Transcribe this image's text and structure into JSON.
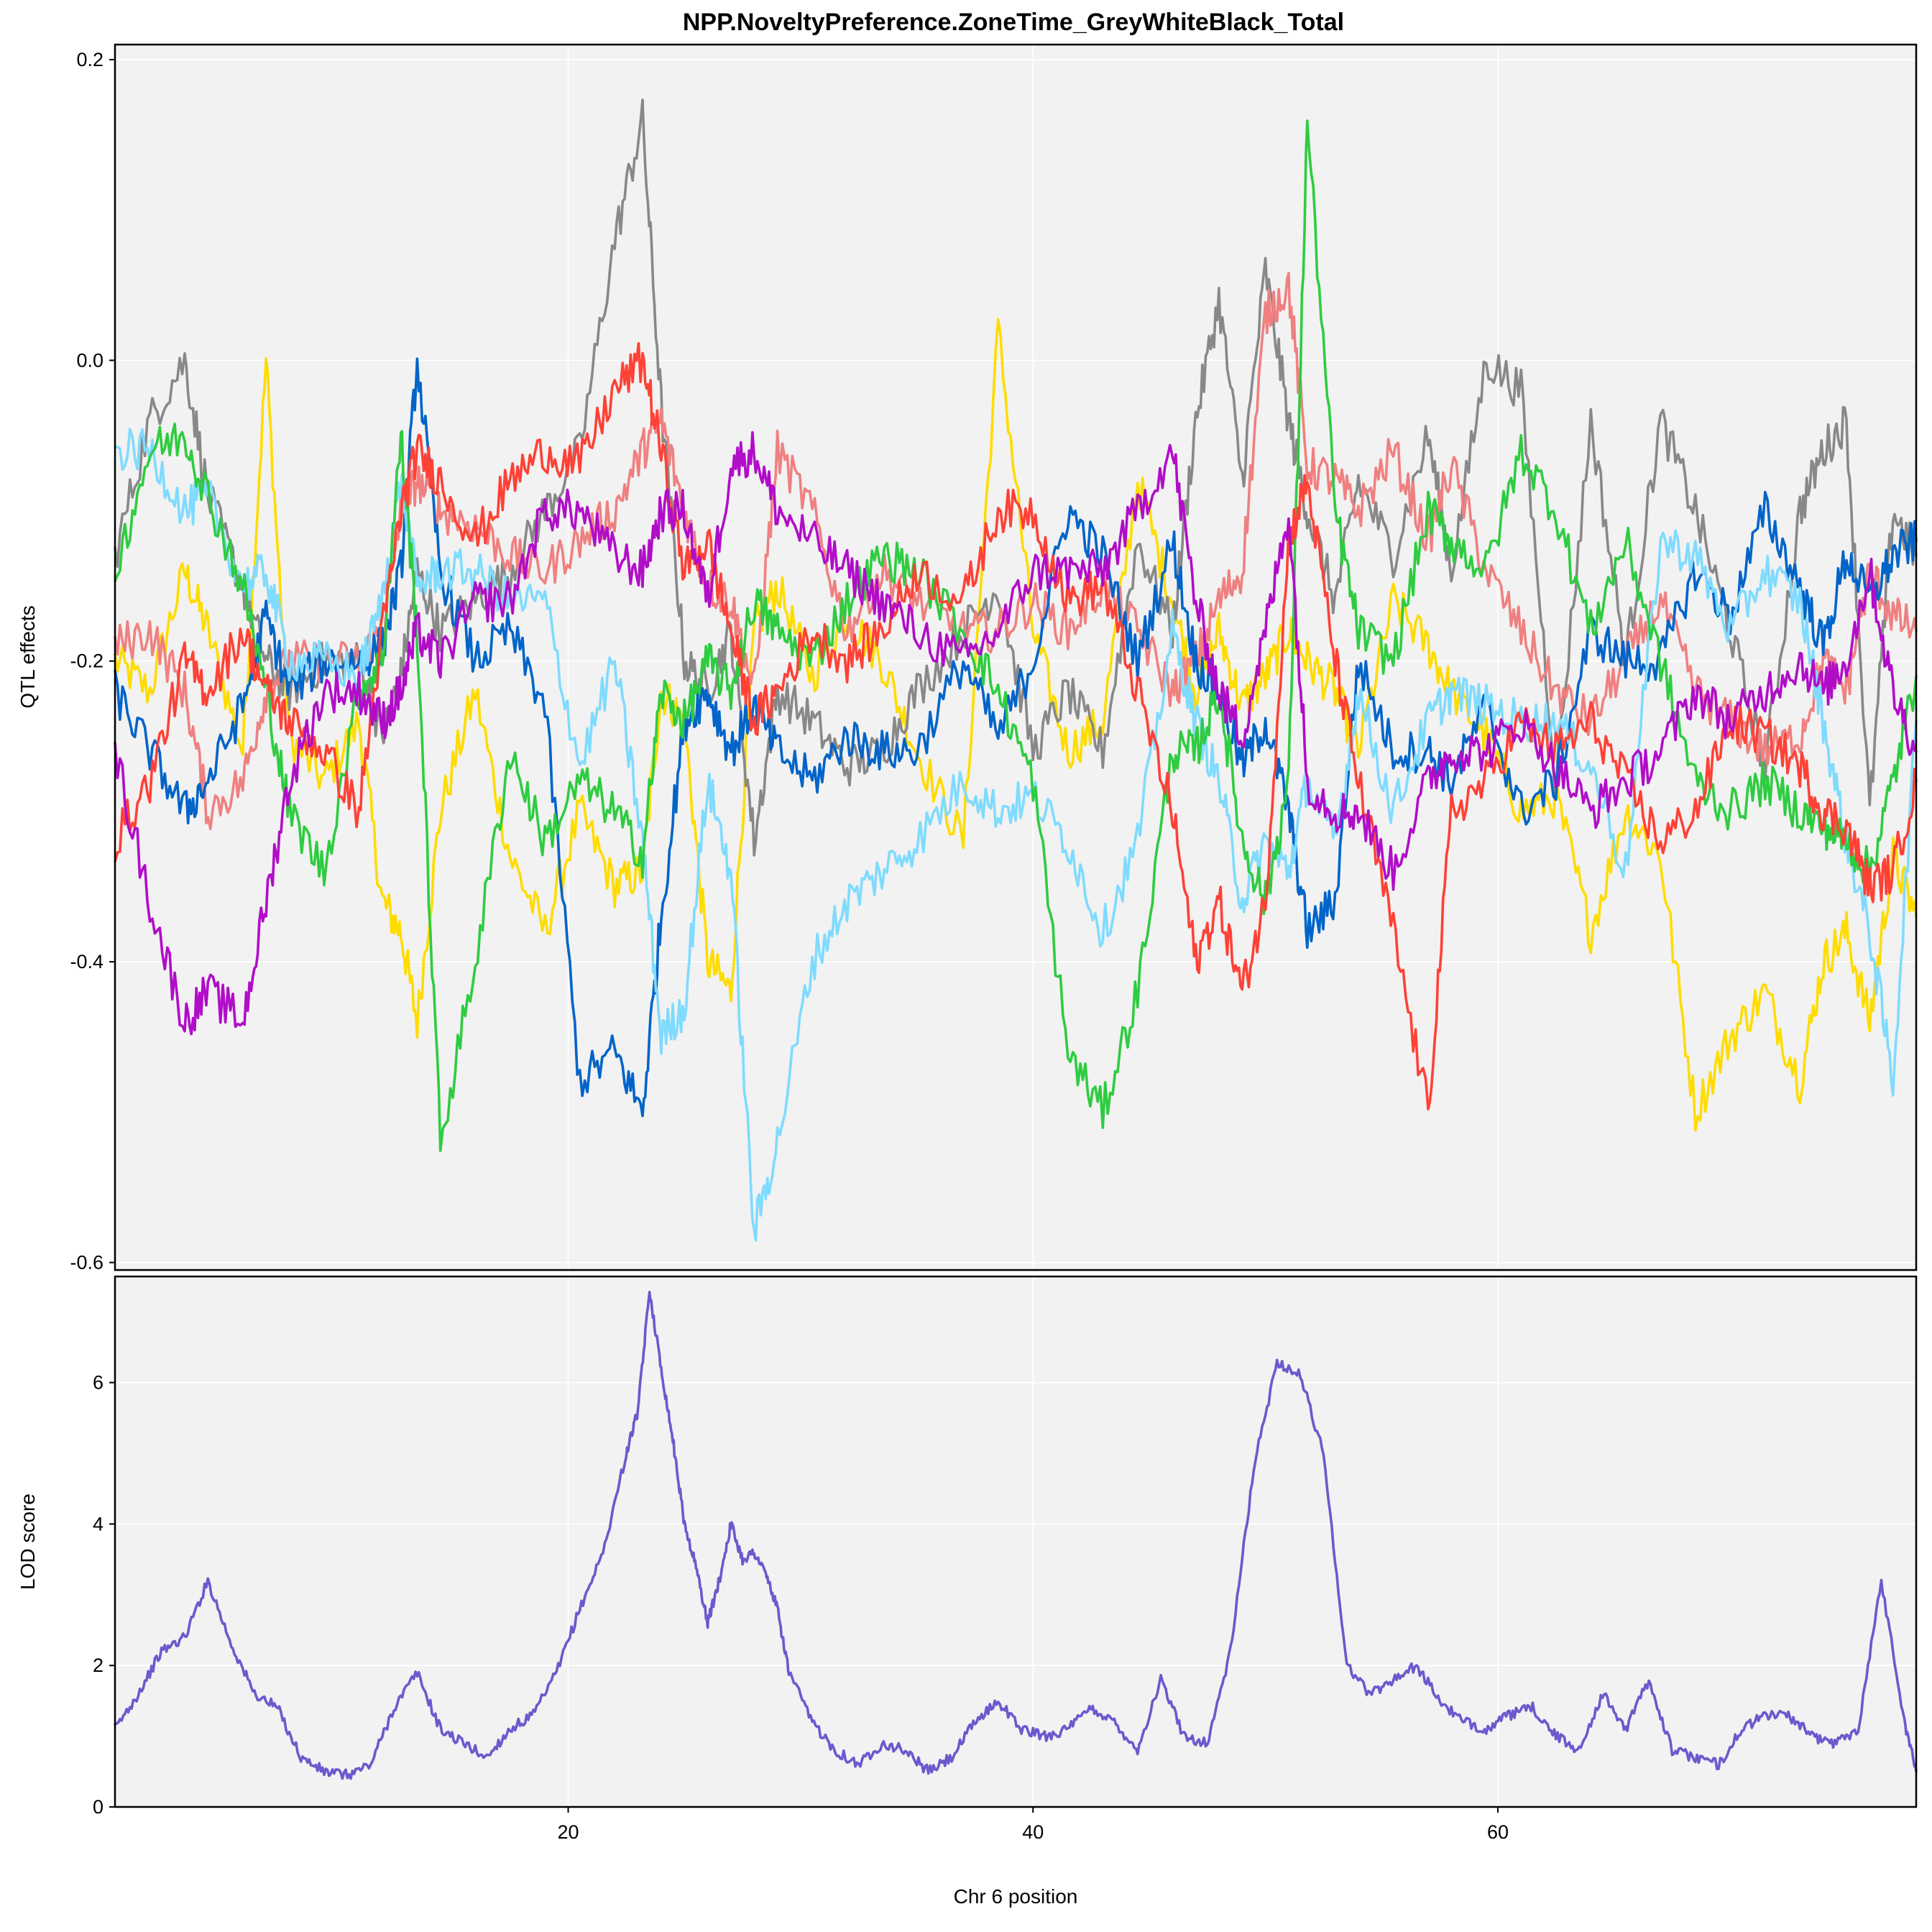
{
  "chart_data": [
    {
      "type": "line",
      "title": "NPP.NoveltyPreference.ZoneTime_GreyWhiteBlack_Total",
      "ylabel": "QTL effects",
      "xlabel": "",
      "xlim": [
        0.5,
        78.0
      ],
      "ylim": [
        -0.605,
        0.21
      ],
      "xticks": [
        20,
        40,
        60
      ],
      "yticks": [
        -0.6,
        -0.4,
        -0.2,
        0.0,
        0.2
      ],
      "ytick_labels": [
        "-0.6",
        "-0.4",
        "-0.2",
        "0.0",
        "0.2"
      ],
      "x": [
        0.5,
        2,
        3.5,
        4.5,
        6,
        7,
        8,
        9.5,
        11,
        12,
        12.8,
        13.5,
        14.5,
        16,
        17.5,
        19,
        20.5,
        22,
        23.2,
        24,
        25,
        26,
        27,
        28,
        29,
        30.5,
        32,
        33.5,
        35,
        37,
        38.5,
        40,
        41.5,
        43,
        44.5,
        46,
        47,
        48,
        49,
        50,
        51,
        51.8,
        53,
        54,
        55.5,
        57,
        58,
        59.5,
        61,
        62.5,
        64,
        65.5,
        67,
        68.5,
        70,
        71.5,
        73,
        74,
        75,
        76,
        77,
        78
      ],
      "series": [
        {
          "color": "#FFDC00",
          "values": [
            -0.2,
            -0.22,
            -0.14,
            -0.18,
            -0.26,
            0.0,
            -0.25,
            -0.28,
            -0.24,
            -0.36,
            -0.38,
            -0.44,
            -0.3,
            -0.22,
            -0.33,
            -0.38,
            -0.3,
            -0.35,
            -0.34,
            -0.22,
            -0.24,
            -0.4,
            -0.42,
            -0.18,
            -0.15,
            -0.21,
            -0.17,
            -0.2,
            -0.26,
            -0.32,
            0.02,
            -0.18,
            -0.26,
            -0.24,
            -0.08,
            -0.16,
            -0.22,
            -0.18,
            -0.23,
            -0.21,
            -0.18,
            -0.2,
            -0.22,
            -0.26,
            -0.16,
            -0.19,
            -0.22,
            -0.25,
            -0.3,
            -0.29,
            -0.38,
            -0.3,
            -0.33,
            -0.5,
            -0.45,
            -0.42,
            -0.48,
            -0.4,
            -0.38,
            -0.44,
            -0.33,
            -0.37
          ]
        },
        {
          "color": "#888888",
          "values": [
            -0.13,
            -0.04,
            0.0,
            -0.09,
            -0.15,
            -0.2,
            -0.22,
            -0.2,
            -0.2,
            -0.25,
            -0.21,
            -0.14,
            -0.18,
            -0.16,
            -0.14,
            -0.1,
            -0.06,
            0.08,
            0.16,
            -0.03,
            -0.2,
            -0.22,
            -0.18,
            -0.32,
            -0.22,
            -0.24,
            -0.27,
            -0.26,
            -0.22,
            -0.18,
            -0.15,
            -0.26,
            -0.22,
            -0.26,
            -0.12,
            -0.18,
            -0.04,
            0.04,
            -0.08,
            0.06,
            -0.04,
            -0.1,
            -0.16,
            -0.08,
            -0.13,
            -0.05,
            -0.14,
            0.0,
            -0.02,
            -0.28,
            -0.04,
            -0.2,
            -0.04,
            -0.1,
            -0.18,
            -0.27,
            -0.1,
            -0.06,
            -0.04,
            -0.3,
            -0.1,
            -0.13
          ]
        },
        {
          "color": "#F08080",
          "values": [
            -0.19,
            -0.18,
            -0.22,
            -0.3,
            -0.28,
            -0.22,
            -0.2,
            -0.2,
            -0.2,
            -0.18,
            -0.1,
            -0.08,
            -0.1,
            -0.11,
            -0.13,
            -0.14,
            -0.12,
            -0.1,
            -0.06,
            -0.04,
            -0.1,
            -0.15,
            -0.16,
            -0.22,
            -0.06,
            -0.1,
            -0.18,
            -0.14,
            -0.16,
            -0.18,
            -0.18,
            -0.16,
            -0.18,
            -0.15,
            -0.18,
            -0.22,
            -0.2,
            -0.16,
            -0.14,
            0.03,
            0.05,
            -0.07,
            -0.08,
            -0.1,
            -0.06,
            -0.12,
            -0.07,
            -0.14,
            -0.18,
            -0.22,
            -0.24,
            -0.2,
            -0.16,
            -0.22,
            -0.24,
            -0.26,
            -0.25,
            -0.2,
            -0.22,
            -0.14,
            -0.17,
            -0.18
          ]
        },
        {
          "color": "#0064C9",
          "values": [
            -0.22,
            -0.26,
            -0.3,
            -0.28,
            -0.23,
            -0.17,
            -0.22,
            -0.2,
            -0.2,
            -0.19,
            -0.14,
            0.0,
            -0.14,
            -0.2,
            -0.18,
            -0.23,
            -0.48,
            -0.46,
            -0.5,
            -0.37,
            -0.24,
            -0.22,
            -0.26,
            -0.23,
            -0.26,
            -0.28,
            -0.25,
            -0.26,
            -0.26,
            -0.2,
            -0.25,
            -0.2,
            -0.1,
            -0.13,
            -0.2,
            -0.12,
            -0.2,
            -0.22,
            -0.27,
            -0.24,
            -0.3,
            -0.38,
            -0.36,
            -0.2,
            -0.26,
            -0.26,
            -0.28,
            -0.23,
            -0.3,
            -0.28,
            -0.18,
            -0.2,
            -0.2,
            -0.14,
            -0.17,
            -0.1,
            -0.15,
            -0.19,
            -0.13,
            -0.16,
            -0.13,
            -0.12
          ]
        },
        {
          "color": "#7FDBFF",
          "values": [
            -0.06,
            -0.06,
            -0.1,
            -0.09,
            -0.15,
            -0.14,
            -0.2,
            -0.2,
            -0.21,
            -0.16,
            -0.08,
            -0.15,
            -0.14,
            -0.14,
            -0.16,
            -0.16,
            -0.27,
            -0.2,
            -0.32,
            -0.45,
            -0.43,
            -0.28,
            -0.34,
            -0.58,
            -0.52,
            -0.4,
            -0.36,
            -0.34,
            -0.32,
            -0.28,
            -0.3,
            -0.29,
            -0.32,
            -0.38,
            -0.32,
            -0.18,
            -0.24,
            -0.28,
            -0.36,
            -0.32,
            -0.34,
            -0.28,
            -0.32,
            -0.22,
            -0.3,
            -0.24,
            -0.22,
            -0.23,
            -0.24,
            -0.24,
            -0.27,
            -0.34,
            -0.12,
            -0.13,
            -0.18,
            -0.14,
            -0.16,
            -0.24,
            -0.32,
            -0.38,
            -0.48,
            -0.24
          ]
        },
        {
          "color": "#2ECC40",
          "values": [
            -0.14,
            -0.06,
            -0.05,
            -0.09,
            -0.15,
            -0.22,
            -0.3,
            -0.34,
            -0.22,
            -0.2,
            -0.05,
            -0.18,
            -0.52,
            -0.4,
            -0.26,
            -0.32,
            -0.28,
            -0.3,
            -0.33,
            -0.22,
            -0.24,
            -0.2,
            -0.22,
            -0.16,
            -0.18,
            -0.2,
            -0.16,
            -0.13,
            -0.14,
            -0.18,
            -0.22,
            -0.28,
            -0.46,
            -0.5,
            -0.42,
            -0.26,
            -0.26,
            -0.22,
            -0.32,
            -0.36,
            -0.28,
            0.16,
            -0.1,
            -0.18,
            -0.2,
            -0.1,
            -0.12,
            -0.14,
            -0.06,
            -0.1,
            -0.18,
            -0.12,
            -0.2,
            -0.28,
            -0.3,
            -0.28,
            -0.3,
            -0.31,
            -0.32,
            -0.34,
            -0.28,
            -0.21
          ]
        },
        {
          "color": "#FF4136",
          "values": [
            -0.32,
            -0.28,
            -0.2,
            -0.22,
            -0.18,
            -0.22,
            -0.24,
            -0.26,
            -0.3,
            -0.18,
            -0.1,
            -0.06,
            -0.08,
            -0.12,
            -0.08,
            -0.06,
            -0.07,
            -0.02,
            0.0,
            -0.06,
            -0.14,
            -0.12,
            -0.18,
            -0.24,
            -0.22,
            -0.18,
            -0.2,
            -0.18,
            -0.14,
            -0.16,
            -0.1,
            -0.1,
            -0.16,
            -0.15,
            -0.22,
            -0.3,
            -0.4,
            -0.36,
            -0.42,
            -0.36,
            -0.12,
            -0.08,
            -0.2,
            -0.28,
            -0.38,
            -0.5,
            -0.3,
            -0.28,
            -0.24,
            -0.26,
            -0.24,
            -0.28,
            -0.32,
            -0.3,
            -0.24,
            -0.25,
            -0.27,
            -0.3,
            -0.31,
            -0.35,
            -0.34,
            -0.28
          ]
        },
        {
          "color": "#B10DC9",
          "values": [
            -0.26,
            -0.36,
            -0.44,
            -0.42,
            -0.44,
            -0.36,
            -0.28,
            -0.22,
            -0.22,
            -0.24,
            -0.22,
            -0.18,
            -0.2,
            -0.16,
            -0.16,
            -0.1,
            -0.1,
            -0.13,
            -0.14,
            -0.1,
            -0.1,
            -0.16,
            -0.07,
            -0.06,
            -0.1,
            -0.12,
            -0.14,
            -0.16,
            -0.18,
            -0.2,
            -0.18,
            -0.14,
            -0.14,
            -0.14,
            -0.1,
            -0.06,
            -0.16,
            -0.22,
            -0.25,
            -0.18,
            -0.1,
            -0.28,
            -0.3,
            -0.3,
            -0.34,
            -0.28,
            -0.26,
            -0.26,
            -0.24,
            -0.27,
            -0.3,
            -0.28,
            -0.26,
            -0.22,
            -0.24,
            -0.22,
            -0.2,
            -0.22,
            -0.2,
            -0.14,
            -0.22,
            -0.26
          ]
        }
      ]
    },
    {
      "type": "line",
      "title": "",
      "ylabel": "LOD score",
      "xlabel": "Chr 6 position",
      "xlim": [
        0.5,
        78.0
      ],
      "ylim": [
        0,
        7.5
      ],
      "xticks": [
        20,
        40,
        60
      ],
      "xtick_labels": [
        "20",
        "40",
        "60"
      ],
      "yticks": [
        0,
        2,
        4,
        6
      ],
      "ytick_labels": [
        "0",
        "2",
        "4",
        "6"
      ],
      "x": [
        0.5,
        1.5,
        2.5,
        3.5,
        4.5,
        5.5,
        6.5,
        7.5,
        8.5,
        9.5,
        10.5,
        11.5,
        12.5,
        13.5,
        14.5,
        15.5,
        16.5,
        17.5,
        18.5,
        19.5,
        20.5,
        21.5,
        22.5,
        23,
        23.5,
        24,
        24.5,
        25,
        25.5,
        26,
        26.5,
        27,
        27.5,
        28,
        28.5,
        29,
        29.5,
        30.5,
        31.5,
        32.5,
        33.5,
        34.5,
        35.5,
        36.5,
        37.5,
        38.5,
        39.5,
        40.5,
        41.5,
        42.5,
        43.5,
        44.5,
        45.5,
        46.5,
        47.5,
        48.5,
        49.5,
        50.5,
        51.5,
        52.5,
        53.5,
        54.5,
        55.5,
        56.5,
        57.5,
        58.5,
        59.5,
        60.5,
        61.5,
        62.5,
        63.5,
        64.5,
        65.5,
        66.5,
        67.5,
        68.5,
        69.5,
        70.5,
        71.5,
        72.5,
        73.5,
        74.5,
        75.5,
        76.5,
        77.5,
        78
      ],
      "series": [
        {
          "color": "#6A5ACD",
          "values": [
            1.1,
            1.6,
            2.2,
            2.4,
            3.2,
            2.3,
            1.6,
            1.4,
            0.7,
            0.5,
            0.45,
            0.6,
            1.4,
            1.9,
            1.1,
            0.9,
            0.7,
            1.1,
            1.3,
            1.9,
            2.8,
            3.6,
            5.0,
            5.6,
            7.3,
            6.2,
            5.2,
            4.0,
            3.4,
            2.6,
            3.2,
            4.0,
            3.5,
            3.6,
            3.3,
            2.8,
            1.9,
            1.2,
            0.8,
            0.6,
            0.9,
            0.8,
            0.5,
            0.7,
            1.2,
            1.5,
            1.1,
            1.0,
            1.1,
            1.4,
            1.2,
            0.8,
            1.8,
            1.0,
            0.9,
            2.2,
            4.8,
            6.3,
            6.1,
            5.0,
            2.0,
            1.6,
            1.8,
            2.0,
            1.5,
            1.2,
            1.1,
            1.3,
            1.4,
            1.0,
            0.8,
            1.6,
            1.1,
            1.8,
            0.8,
            0.7,
            0.6,
            1.1,
            1.3,
            1.3,
            1.0,
            0.9,
            1.1,
            3.2,
            1.2,
            0.5
          ]
        }
      ]
    }
  ]
}
